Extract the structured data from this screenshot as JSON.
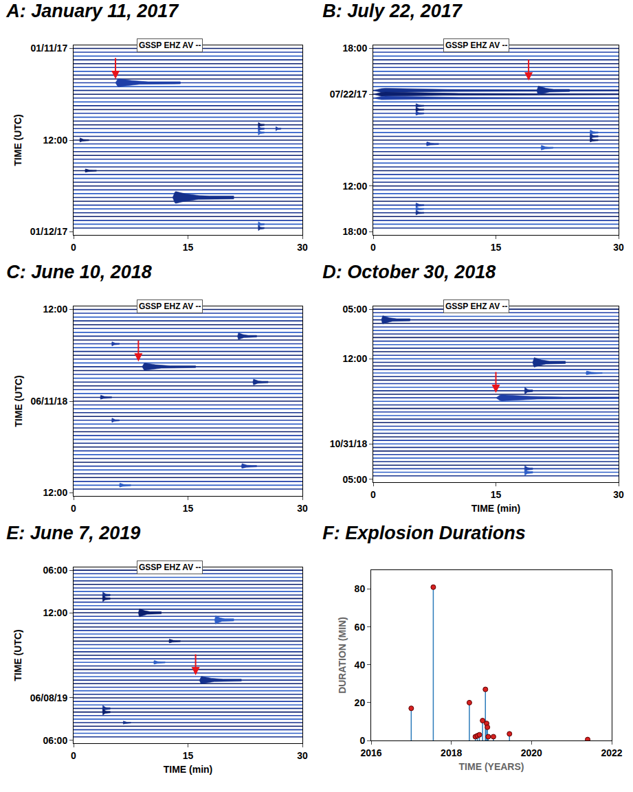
{
  "chart_data": [
    {
      "type": "helicorder",
      "title": "A: January 11, 2017",
      "label": "GSSP EHZ AV --",
      "ylabel": "TIME (UTC)",
      "xlim": [
        0,
        30
      ],
      "xticks": [
        0,
        15,
        30
      ],
      "ylim": [
        24.4,
        -0.4
      ],
      "yticks": [
        {
          "value": 0,
          "label": "01/11/17"
        },
        {
          "value": 12,
          "label": "12:00"
        },
        {
          "value": 24,
          "label": "01/12/17"
        }
      ],
      "rows": 48,
      "colors": [
        "#0b1f6e",
        "#1f3fa8",
        "#2f5fc8",
        "#14308c"
      ],
      "arrow": {
        "x": 5.5,
        "y": 4.0,
        "color": "#e8141b"
      },
      "events": [
        {
          "x0": 5.5,
          "x1": 14,
          "y": 4.5,
          "amp": 0.55
        },
        {
          "x0": 13,
          "x1": 21,
          "y": 19.5,
          "amp": 0.8
        },
        {
          "x0": 24.2,
          "x1": 25,
          "y": 10,
          "amp": 0.35
        },
        {
          "x0": 24.2,
          "x1": 25,
          "y": 10.5,
          "amp": 0.35
        },
        {
          "x0": 24.2,
          "x1": 25,
          "y": 11,
          "amp": 0.35
        },
        {
          "x0": 26.5,
          "x1": 27.2,
          "y": 10.5,
          "amp": 0.3
        },
        {
          "x0": 24.2,
          "x1": 25,
          "y": 23,
          "amp": 0.35
        },
        {
          "x0": 24.2,
          "x1": 25,
          "y": 23.5,
          "amp": 0.35
        },
        {
          "x0": 0.8,
          "x1": 2,
          "y": 12,
          "amp": 0.3
        },
        {
          "x0": 1.5,
          "x1": 3,
          "y": 16,
          "amp": 0.25
        }
      ]
    },
    {
      "type": "helicorder",
      "title": "B: July 22, 2017",
      "label": "GSSP EHZ AV --",
      "xlim": [
        0,
        30
      ],
      "xticks": [
        0,
        15,
        30
      ],
      "ylim": [
        24.4,
        -0.4
      ],
      "yticks": [
        {
          "value": 0,
          "label": "18:00"
        },
        {
          "value": 6,
          "label": "07/22/17"
        },
        {
          "value": 18,
          "label": "12:00"
        },
        {
          "value": 24,
          "label": "18:00"
        }
      ],
      "rows": 48,
      "colors": [
        "#0b1f6e",
        "#1f3fa8",
        "#2f5fc8",
        "#14308c"
      ],
      "arrow": {
        "x": 19,
        "y": 4.2,
        "color": "#e8141b"
      },
      "events": [
        {
          "x0": 0,
          "x1": 30,
          "y": 5.5,
          "amp": 0.3
        },
        {
          "x0": 0,
          "x1": 30,
          "y": 6,
          "amp": 0.3
        },
        {
          "x0": 0,
          "x1": 30,
          "y": 6.5,
          "amp": 0.25
        },
        {
          "x0": 20,
          "x1": 24,
          "y": 5.5,
          "amp": 0.6
        },
        {
          "x0": 5.2,
          "x1": 6.2,
          "y": 7.5,
          "amp": 0.3
        },
        {
          "x0": 5.2,
          "x1": 6.2,
          "y": 8,
          "amp": 0.3
        },
        {
          "x0": 5.2,
          "x1": 6.2,
          "y": 8.5,
          "amp": 0.3
        },
        {
          "x0": 5.2,
          "x1": 6.2,
          "y": 20.5,
          "amp": 0.3
        },
        {
          "x0": 5.2,
          "x1": 6.2,
          "y": 21,
          "amp": 0.3
        },
        {
          "x0": 5.2,
          "x1": 6.2,
          "y": 21.5,
          "amp": 0.3
        },
        {
          "x0": 26.5,
          "x1": 27.5,
          "y": 11,
          "amp": 0.35
        },
        {
          "x0": 26.5,
          "x1": 27.5,
          "y": 11.5,
          "amp": 0.35
        },
        {
          "x0": 26.5,
          "x1": 27.5,
          "y": 12,
          "amp": 0.3
        },
        {
          "x0": 6.5,
          "x1": 8,
          "y": 12.5,
          "amp": 0.3
        },
        {
          "x0": 20.5,
          "x1": 22,
          "y": 13,
          "amp": 0.35
        }
      ]
    },
    {
      "type": "helicorder",
      "title": "C: June 10, 2018",
      "label": "GSSP EHZ AV --",
      "ylabel": "TIME (UTC)",
      "xlim": [
        0,
        30
      ],
      "xticks": [
        0,
        15,
        30
      ],
      "ylim": [
        24.4,
        -0.4
      ],
      "yticks": [
        {
          "value": 0,
          "label": "12:00"
        },
        {
          "value": 12,
          "label": "06/11/18"
        },
        {
          "value": 24,
          "label": "12:00"
        }
      ],
      "rows": 48,
      "colors": [
        "#0b1f6e",
        "#1f3fa8",
        "#2f5fc8",
        "#14308c"
      ],
      "arrow": {
        "x": 8.5,
        "y": 6.8,
        "color": "#e8141b"
      },
      "events": [
        {
          "x0": 9,
          "x1": 16,
          "y": 7.5,
          "amp": 0.5
        },
        {
          "x0": 21.5,
          "x1": 24,
          "y": 3.5,
          "amp": 0.45
        },
        {
          "x0": 23.5,
          "x1": 25.5,
          "y": 9.5,
          "amp": 0.4
        },
        {
          "x0": 5,
          "x1": 6,
          "y": 4.5,
          "amp": 0.3
        },
        {
          "x0": 3.5,
          "x1": 5,
          "y": 11.5,
          "amp": 0.3
        },
        {
          "x0": 22,
          "x1": 24,
          "y": 20.5,
          "amp": 0.35
        },
        {
          "x0": 5,
          "x1": 6,
          "y": 14.5,
          "amp": 0.3
        },
        {
          "x0": 6,
          "x1": 7.5,
          "y": 23,
          "amp": 0.3
        }
      ]
    },
    {
      "type": "helicorder",
      "title": "D: October 30, 2018",
      "label": "GSSP EHZ AV --",
      "xlabel": "TIME (min)",
      "xlim": [
        0,
        30
      ],
      "xticks": [
        0,
        15,
        30
      ],
      "ylim": [
        24.4,
        -0.4
      ],
      "yticks": [
        {
          "value": 0,
          "label": "05:00"
        },
        {
          "value": 7,
          "label": "12:00"
        },
        {
          "value": 19,
          "label": "10/31/18"
        },
        {
          "value": 24,
          "label": "05:00"
        }
      ],
      "rows": 48,
      "colors": [
        "#0b1f6e",
        "#1f3fa8",
        "#2f5fc8",
        "#14308c"
      ],
      "arrow": {
        "x": 15,
        "y": 11.8,
        "color": "#e8141b"
      },
      "events": [
        {
          "x0": 15,
          "x1": 30,
          "y": 12.5,
          "amp": 0.45
        },
        {
          "x0": 19.5,
          "x1": 23.5,
          "y": 7.5,
          "amp": 0.7
        },
        {
          "x0": 1,
          "x1": 4.5,
          "y": 1.5,
          "amp": 0.6
        },
        {
          "x0": 18.5,
          "x1": 19.5,
          "y": 11.5,
          "amp": 0.5
        },
        {
          "x0": 18.5,
          "x1": 19.5,
          "y": 22.5,
          "amp": 0.45
        },
        {
          "x0": 18.5,
          "x1": 19.5,
          "y": 23,
          "amp": 0.45
        },
        {
          "x0": 26,
          "x1": 28,
          "y": 9,
          "amp": 0.3
        }
      ]
    },
    {
      "type": "helicorder",
      "title": "E: June 7, 2019",
      "label": "GSSP EHZ AV --",
      "ylabel": "TIME (UTC)",
      "xlabel": "TIME (min)",
      "xlim": [
        0,
        30
      ],
      "xticks": [
        0,
        15,
        30
      ],
      "ylim": [
        24.4,
        -0.4
      ],
      "yticks": [
        {
          "value": 0,
          "label": "06:00"
        },
        {
          "value": 6,
          "label": "12:00"
        },
        {
          "value": 18,
          "label": "06/08/19"
        },
        {
          "value": 24,
          "label": "06:00"
        }
      ],
      "rows": 48,
      "colors": [
        "#0b1f6e",
        "#1f3fa8",
        "#2f5fc8",
        "#14308c"
      ],
      "arrow": {
        "x": 16,
        "y": 14.8,
        "color": "#e8141b"
      },
      "events": [
        {
          "x0": 16.5,
          "x1": 22,
          "y": 15.5,
          "amp": 0.55
        },
        {
          "x0": 8.5,
          "x1": 11.5,
          "y": 6,
          "amp": 0.6
        },
        {
          "x0": 18.5,
          "x1": 21,
          "y": 7,
          "amp": 0.6
        },
        {
          "x0": 3.8,
          "x1": 4.8,
          "y": 3.5,
          "amp": 0.45
        },
        {
          "x0": 3.8,
          "x1": 4.8,
          "y": 4,
          "amp": 0.45
        },
        {
          "x0": 3.8,
          "x1": 4.8,
          "y": 19.5,
          "amp": 0.45
        },
        {
          "x0": 3.8,
          "x1": 4.8,
          "y": 20,
          "amp": 0.45
        },
        {
          "x0": 10.5,
          "x1": 12,
          "y": 13,
          "amp": 0.3
        },
        {
          "x0": 6.5,
          "x1": 7.5,
          "y": 21.5,
          "amp": 0.25
        },
        {
          "x0": 12.5,
          "x1": 14,
          "y": 10,
          "amp": 0.3
        }
      ]
    },
    {
      "type": "stem",
      "title": "F: Explosion Durations",
      "xlabel": "TIME (YEARS)",
      "ylabel": "DURATION (MIN)",
      "x": [
        2017.0,
        2017.55,
        2018.45,
        2018.6,
        2018.65,
        2018.7,
        2018.78,
        2018.85,
        2018.88,
        2018.9,
        2018.92,
        2019.05,
        2019.45,
        2021.4
      ],
      "values": [
        17,
        81,
        20,
        2,
        2.5,
        3,
        10.5,
        27,
        9,
        7,
        2,
        2,
        3.5,
        0.5
      ],
      "xlim": [
        2016,
        2022
      ],
      "xticks": [
        2016,
        2018,
        2020,
        2022
      ],
      "ylim": [
        0,
        90
      ],
      "yticks": [
        0,
        20,
        40,
        60,
        80
      ],
      "color": "#2b7bba",
      "marker": "circle"
    }
  ]
}
